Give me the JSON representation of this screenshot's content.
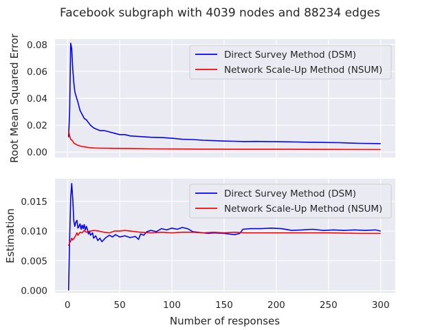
{
  "figure": {
    "title": "Facebook subgraph with 4039 nodes and 88234 edges",
    "xlabel": "Number of responses"
  },
  "colors": {
    "background": "#ffffff",
    "panel": "#eaeaf2",
    "grid": "#ffffff",
    "text": "#262626",
    "dsm": "#0000ff",
    "nsum": "#ff0000"
  },
  "chart_data": [
    {
      "type": "line",
      "title": "Facebook subgraph with 4039 nodes and 88234 edges",
      "xlabel": "",
      "ylabel": "Root Mean Squared Error",
      "xlim": [
        -12,
        314
      ],
      "ylim": [
        -0.004,
        0.084
      ],
      "xticks": [
        0,
        50,
        100,
        150,
        200,
        250,
        300
      ],
      "yticks": [
        0.0,
        0.02,
        0.04,
        0.06,
        0.08
      ],
      "ytick_labels": [
        "0.00",
        "0.02",
        "0.04",
        "0.06",
        "0.08"
      ],
      "grid": true,
      "legend_position": "upper right",
      "series": [
        {
          "name": "Direct Survey Method (DSM)",
          "color": "#0000ff",
          "points": [
            [
              1,
              0.011
            ],
            [
              2,
              0.03
            ],
            [
              3,
              0.081
            ],
            [
              4,
              0.077
            ],
            [
              5,
              0.062
            ],
            [
              6,
              0.052
            ],
            [
              7,
              0.045
            ],
            [
              8,
              0.042
            ],
            [
              10,
              0.037
            ],
            [
              12,
              0.031
            ],
            [
              14,
              0.028
            ],
            [
              16,
              0.025
            ],
            [
              18,
              0.024
            ],
            [
              20,
              0.022
            ],
            [
              22,
              0.02
            ],
            [
              25,
              0.018
            ],
            [
              28,
              0.017
            ],
            [
              31,
              0.016
            ],
            [
              35,
              0.016
            ],
            [
              40,
              0.015
            ],
            [
              45,
              0.014
            ],
            [
              50,
              0.013
            ],
            [
              55,
              0.013
            ],
            [
              60,
              0.012
            ],
            [
              70,
              0.0115
            ],
            [
              80,
              0.011
            ],
            [
              90,
              0.0108
            ],
            [
              100,
              0.0103
            ],
            [
              110,
              0.0095
            ],
            [
              120,
              0.0093
            ],
            [
              130,
              0.0088
            ],
            [
              140,
              0.0085
            ],
            [
              150,
              0.0082
            ],
            [
              160,
              0.008
            ],
            [
              170,
              0.0078
            ],
            [
              180,
              0.0079
            ],
            [
              190,
              0.0078
            ],
            [
              200,
              0.0077
            ],
            [
              210,
              0.0076
            ],
            [
              220,
              0.0075
            ],
            [
              230,
              0.0073
            ],
            [
              240,
              0.0072
            ],
            [
              250,
              0.0071
            ],
            [
              260,
              0.007
            ],
            [
              270,
              0.0067
            ],
            [
              280,
              0.0065
            ],
            [
              290,
              0.0064
            ],
            [
              300,
              0.0063
            ]
          ]
        },
        {
          "name": "Network Scale-Up Method (NSUM)",
          "color": "#ff0000",
          "points": [
            [
              1,
              0.016
            ],
            [
              2,
              0.012
            ],
            [
              3,
              0.0095
            ],
            [
              4,
              0.009
            ],
            [
              5,
              0.008
            ],
            [
              6,
              0.0068
            ],
            [
              8,
              0.0058
            ],
            [
              10,
              0.005
            ],
            [
              12,
              0.0045
            ],
            [
              15,
              0.004
            ],
            [
              18,
              0.0036
            ],
            [
              22,
              0.0032
            ],
            [
              26,
              0.003
            ],
            [
              30,
              0.0029
            ],
            [
              40,
              0.0028
            ],
            [
              50,
              0.0027
            ],
            [
              60,
              0.0026
            ],
            [
              80,
              0.0024
            ],
            [
              100,
              0.0023
            ],
            [
              130,
              0.0022
            ],
            [
              160,
              0.0021
            ],
            [
              200,
              0.0021
            ],
            [
              250,
              0.002
            ],
            [
              300,
              0.0019
            ]
          ]
        }
      ]
    },
    {
      "type": "line",
      "title": "",
      "xlabel": "Number of responses",
      "ylabel": "Estimation",
      "xlim": [
        -12,
        314
      ],
      "ylim": [
        -0.0004,
        0.0188
      ],
      "xticks": [
        0,
        50,
        100,
        150,
        200,
        250,
        300
      ],
      "yticks": [
        0.0,
        0.005,
        0.01,
        0.015
      ],
      "ytick_labels": [
        "0.000",
        "0.005",
        "0.010",
        "0.015"
      ],
      "grid": true,
      "legend_position": "upper right",
      "series": [
        {
          "name": "Direct Survey Method (DSM)",
          "color": "#0000ff",
          "points": [
            [
              1,
              0.0
            ],
            [
              2,
              0.0086
            ],
            [
              3,
              0.0155
            ],
            [
              4,
              0.018
            ],
            [
              5,
              0.0155
            ],
            [
              6,
              0.0118
            ],
            [
              7,
              0.0108
            ],
            [
              8,
              0.0115
            ],
            [
              9,
              0.0118
            ],
            [
              10,
              0.0105
            ],
            [
              11,
              0.0108
            ],
            [
              12,
              0.0112
            ],
            [
              13,
              0.0103
            ],
            [
              14,
              0.011
            ],
            [
              15,
              0.0104
            ],
            [
              16,
              0.0111
            ],
            [
              17,
              0.0102
            ],
            [
              18,
              0.0108
            ],
            [
              19,
              0.0103
            ],
            [
              20,
              0.0095
            ],
            [
              21,
              0.01
            ],
            [
              22,
              0.0093
            ],
            [
              24,
              0.0097
            ],
            [
              25,
              0.0088
            ],
            [
              27,
              0.0092
            ],
            [
              29,
              0.0084
            ],
            [
              31,
              0.0088
            ],
            [
              33,
              0.0082
            ],
            [
              36,
              0.0088
            ],
            [
              40,
              0.0093
            ],
            [
              43,
              0.009
            ],
            [
              46,
              0.0094
            ],
            [
              50,
              0.009
            ],
            [
              55,
              0.0092
            ],
            [
              60,
              0.0089
            ],
            [
              65,
              0.0091
            ],
            [
              68,
              0.0086
            ],
            [
              70,
              0.0095
            ],
            [
              73,
              0.0093
            ],
            [
              76,
              0.0099
            ],
            [
              80,
              0.0101
            ],
            [
              85,
              0.0099
            ],
            [
              90,
              0.0104
            ],
            [
              95,
              0.0102
            ],
            [
              100,
              0.0105
            ],
            [
              105,
              0.0103
            ],
            [
              110,
              0.0106
            ],
            [
              115,
              0.0104
            ],
            [
              120,
              0.0099
            ],
            [
              125,
              0.0098
            ],
            [
              130,
              0.0097
            ],
            [
              135,
              0.0096
            ],
            [
              140,
              0.0097
            ],
            [
              150,
              0.0096
            ],
            [
              160,
              0.0094
            ],
            [
              165,
              0.0096
            ],
            [
              168,
              0.0103
            ],
            [
              175,
              0.0104
            ],
            [
              185,
              0.0104
            ],
            [
              195,
              0.0105
            ],
            [
              205,
              0.0104
            ],
            [
              215,
              0.0101
            ],
            [
              225,
              0.0102
            ],
            [
              235,
              0.0103
            ],
            [
              245,
              0.0101
            ],
            [
              255,
              0.0102
            ],
            [
              265,
              0.0101
            ],
            [
              275,
              0.0102
            ],
            [
              285,
              0.0101
            ],
            [
              295,
              0.0102
            ],
            [
              300,
              0.01
            ]
          ]
        },
        {
          "name": "Network Scale-Up Method (NSUM)",
          "color": "#ff0000",
          "points": [
            [
              1,
              0.0075
            ],
            [
              2,
              0.008
            ],
            [
              3,
              0.0083
            ],
            [
              4,
              0.0088
            ],
            [
              5,
              0.0085
            ],
            [
              6,
              0.0087
            ],
            [
              7,
              0.009
            ],
            [
              8,
              0.0093
            ],
            [
              9,
              0.0097
            ],
            [
              10,
              0.0093
            ],
            [
              12,
              0.0098
            ],
            [
              14,
              0.0097
            ],
            [
              16,
              0.0101
            ],
            [
              18,
              0.0098
            ],
            [
              20,
              0.0099
            ],
            [
              25,
              0.0101
            ],
            [
              30,
              0.01
            ],
            [
              35,
              0.0098
            ],
            [
              40,
              0.0097
            ],
            [
              45,
              0.01
            ],
            [
              50,
              0.01
            ],
            [
              55,
              0.0101
            ],
            [
              60,
              0.01
            ],
            [
              65,
              0.0099
            ],
            [
              70,
              0.0098
            ],
            [
              80,
              0.0097
            ],
            [
              90,
              0.0098
            ],
            [
              100,
              0.0097
            ],
            [
              110,
              0.0098
            ],
            [
              120,
              0.0098
            ],
            [
              130,
              0.0097
            ],
            [
              140,
              0.0098
            ],
            [
              150,
              0.0097
            ],
            [
              160,
              0.0098
            ],
            [
              170,
              0.0097
            ],
            [
              180,
              0.0097
            ],
            [
              200,
              0.0097
            ],
            [
              220,
              0.0097
            ],
            [
              250,
              0.0097
            ],
            [
              280,
              0.0096
            ],
            [
              300,
              0.0096
            ]
          ]
        }
      ]
    }
  ]
}
